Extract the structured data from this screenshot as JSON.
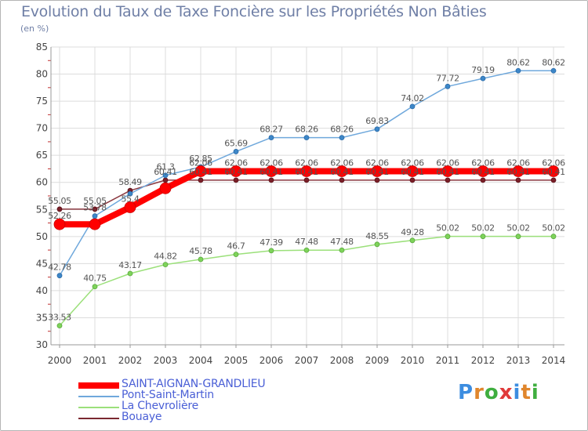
{
  "title": "Evolution du Taux de Taxe Foncière sur les Propriétés Non Bâties",
  "unit_label": "(en %)",
  "logo": {
    "text": "Proxiti",
    "colors": [
      "#3c8de0",
      "#e0862c",
      "#3fae3f",
      "#e03a3a",
      "#3c8de0",
      "#e0862c",
      "#3fae3f"
    ]
  },
  "chart_data": {
    "type": "line",
    "title": "Evolution du Taux de Taxe Foncière sur les Propriétés Non Bâties",
    "ylabel": "(en %)",
    "xlabel": "",
    "x": [
      "2000",
      "2001",
      "2002",
      "2003",
      "2004",
      "2005",
      "2006",
      "2007",
      "2008",
      "2009",
      "2010",
      "2011",
      "2012",
      "2013",
      "2014"
    ],
    "ylim": [
      30,
      85
    ],
    "yticks": [
      "30",
      "35",
      "40",
      "45",
      "50",
      "55",
      "60",
      "65",
      "70",
      "75",
      "80",
      "85"
    ],
    "grid": true,
    "legend_position": "bottom-left",
    "series": [
      {
        "name": "SAINT-AIGNAN-GRANDLIEU",
        "color": "#ff0000",
        "values": [
          52.26,
          52.26,
          55.4,
          58.9,
          62.06,
          62.06,
          62.06,
          62.06,
          62.06,
          62.06,
          62.06,
          62.06,
          62.06,
          62.06,
          62.06
        ],
        "labels": [
          "52.26",
          "",
          "55.4",
          "",
          "62.06",
          "62.06",
          "62.06",
          "62.06",
          "62.06",
          "62.06",
          "62.06",
          "62.06",
          "62.06",
          "62.06",
          "62.06"
        ]
      },
      {
        "name": "Pont-Saint-Martin",
        "color": "#6fa8dc",
        "values": [
          42.78,
          53.78,
          57.9,
          61.3,
          62.85,
          65.69,
          68.27,
          68.26,
          68.26,
          69.83,
          74.02,
          77.72,
          79.19,
          80.62,
          80.62
        ],
        "labels": [
          "42.78",
          "53.78",
          "",
          "61.3",
          "62.85",
          "65.69",
          "68.27",
          "68.26",
          "68.26",
          "69.83",
          "74.02",
          "77.72",
          "79.19",
          "80.62",
          "80.62"
        ]
      },
      {
        "name": "La Chevrolière",
        "color": "#9be07a",
        "values": [
          33.53,
          40.75,
          43.17,
          44.82,
          45.78,
          46.7,
          47.39,
          47.48,
          47.48,
          48.55,
          49.28,
          50.02,
          50.02,
          50.02,
          50.02
        ],
        "labels": [
          "33.53",
          "40.75",
          "43.17",
          "44.82",
          "45.78",
          "46.7",
          "47.39",
          "47.48",
          "47.48",
          "48.55",
          "49.28",
          "50.02",
          "50.02",
          "50.02",
          "50.02"
        ]
      },
      {
        "name": "Bouaye",
        "color": "#7a2830",
        "values": [
          55.05,
          55.05,
          58.49,
          60.41,
          60.41,
          60.41,
          60.41,
          60.41,
          60.41,
          60.41,
          60.41,
          60.41,
          60.41,
          60.41,
          60.41
        ],
        "labels": [
          "55.05",
          "55.05",
          "58.49",
          "60.41",
          "60.41",
          "60.41",
          "60.41",
          "60.41",
          "60.41",
          "60.41",
          "60.41",
          "60.41",
          "60.41",
          "60.41",
          "60.41"
        ]
      }
    ]
  }
}
